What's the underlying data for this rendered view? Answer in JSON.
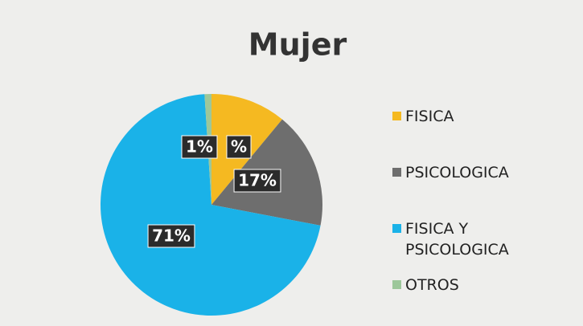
{
  "chart_data": {
    "type": "pie",
    "title": "Mujer",
    "categories": [
      "FISICA",
      "PSICOLOGICA",
      "FISICA Y PSICOLOGICA",
      "OTROS"
    ],
    "values": [
      11,
      17,
      71,
      1
    ],
    "value_labels": [
      "%",
      "17%",
      "71%",
      "1%"
    ],
    "colors": [
      "#f5b921",
      "#6e6e6e",
      "#1ab2e8",
      "#9cc79a"
    ],
    "legend": "right"
  }
}
